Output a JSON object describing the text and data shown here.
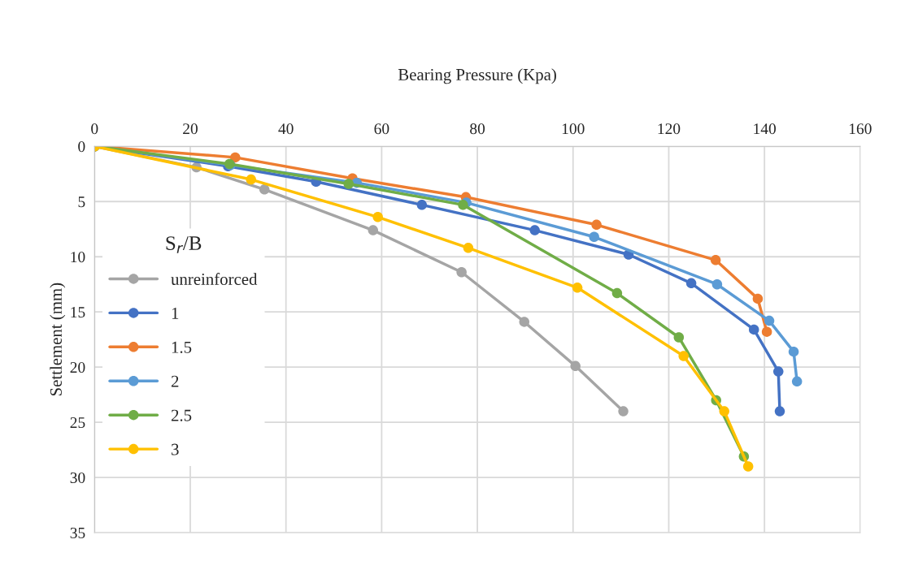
{
  "chart_data": {
    "type": "line",
    "xlabel": "Bearing Pressure (Kpa)",
    "ylabel": "Settlement (mm)",
    "legend_title": "S$_{r}$/B",
    "xlim": [
      0,
      160
    ],
    "xticks": [
      0,
      20,
      40,
      60,
      80,
      100,
      120,
      140,
      160
    ],
    "ylim": [
      35,
      0
    ],
    "yticks": [
      0,
      5,
      10,
      15,
      20,
      25,
      30,
      35
    ],
    "grid": true,
    "legend": "left",
    "marker": "circle",
    "line_style": "solid",
    "series": [
      {
        "name": "unreinforced",
        "color": "#a5a5a5",
        "x": [
          0,
          21.3,
          35.5,
          58.2,
          76.7,
          89.8,
          100.5,
          110.5
        ],
        "values": [
          0,
          1.9,
          3.9,
          7.6,
          11.4,
          15.9,
          19.9,
          24.0
        ]
      },
      {
        "name": "1",
        "color": "#4472c4",
        "x": [
          0,
          27.9,
          46.3,
          68.4,
          92.0,
          111.6,
          124.7,
          137.8,
          142.9,
          143.2
        ],
        "values": [
          0,
          1.8,
          3.2,
          5.3,
          7.6,
          9.8,
          12.4,
          16.6,
          20.4,
          24.0
        ]
      },
      {
        "name": "1.5",
        "color": "#ed7d31",
        "x": [
          0,
          29.4,
          53.9,
          77.6,
          104.9,
          129.8,
          138.6,
          140.5
        ],
        "values": [
          0,
          1.0,
          2.9,
          4.6,
          7.1,
          10.3,
          13.8,
          16.8
        ]
      },
      {
        "name": "2",
        "color": "#5b9bd5",
        "x": [
          0,
          28.4,
          54.8,
          77.7,
          104.4,
          130.1,
          141.0,
          146.1,
          146.8
        ],
        "values": [
          0,
          1.7,
          3.3,
          5.1,
          8.2,
          12.5,
          15.8,
          18.6,
          21.3
        ]
      },
      {
        "name": "2.5",
        "color": "#70ad47",
        "x": [
          0,
          28.2,
          53.1,
          77.0,
          109.2,
          122.1,
          129.9,
          135.7
        ],
        "values": [
          0,
          1.6,
          3.4,
          5.3,
          13.3,
          17.3,
          23.0,
          28.1
        ]
      },
      {
        "name": "3",
        "color": "#ffc000",
        "x": [
          0,
          32.7,
          59.2,
          78.1,
          100.9,
          123.1,
          131.6,
          136.6
        ],
        "values": [
          0,
          3.0,
          6.4,
          9.2,
          12.8,
          19.0,
          24.0,
          29.0
        ]
      }
    ]
  }
}
